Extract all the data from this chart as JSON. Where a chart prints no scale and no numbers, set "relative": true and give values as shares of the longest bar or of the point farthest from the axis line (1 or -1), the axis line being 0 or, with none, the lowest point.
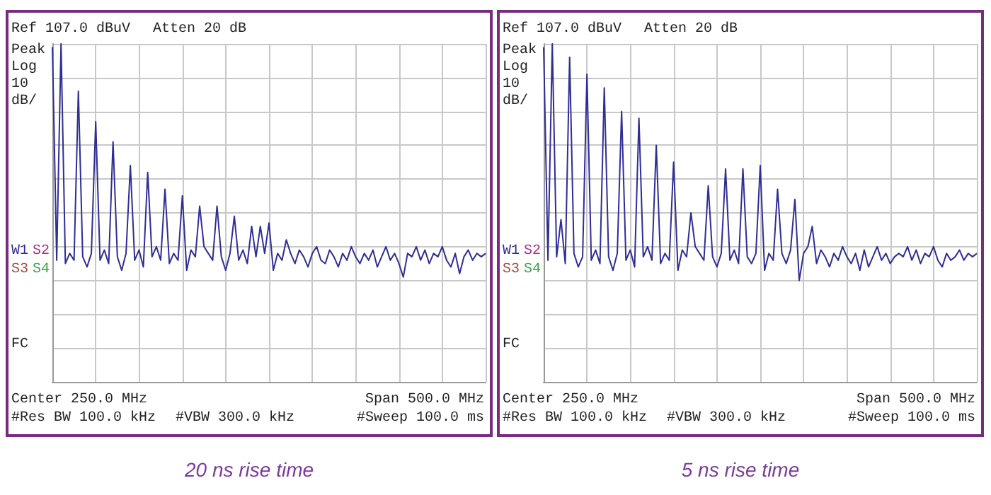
{
  "chart_data": [
    {
      "type": "line",
      "title": "20 ns rise time",
      "relative": true,
      "grid": true,
      "tick_labels": false,
      "line_style": "solid",
      "annotations": [
        "Ref 107.0 dBuV",
        "Atten 20 dB",
        "Peak",
        "Log",
        "10",
        "dB/",
        "W1",
        "S2",
        "S3",
        "S4",
        "FC",
        "Center 250.0 MHz",
        "Span 500.0 MHz",
        "#Res BW 100.0 kHz",
        "#VBW 300.0 kHz",
        "#Sweep 100.0 ms"
      ],
      "categories": [
        null,
        null,
        null,
        null,
        null,
        null,
        null,
        null,
        null,
        null,
        null,
        null,
        null,
        null,
        null,
        null,
        null,
        null,
        null,
        null,
        null,
        null,
        null,
        null,
        null,
        null,
        null,
        null,
        null,
        null,
        null,
        null,
        null,
        null,
        null,
        null,
        null,
        null,
        null,
        null,
        null,
        null,
        null,
        null,
        null,
        null,
        null,
        null,
        null,
        null,
        null,
        null,
        null,
        null,
        null,
        null,
        null,
        null,
        null,
        null,
        null,
        null,
        null,
        null,
        null,
        null,
        null,
        null,
        null,
        null,
        null,
        null,
        null,
        null,
        null,
        null,
        null,
        null,
        null,
        null,
        null,
        null,
        null,
        null,
        null,
        null,
        null,
        null,
        null,
        null,
        null,
        null,
        null,
        null,
        null,
        null,
        null,
        null,
        null,
        null,
        null
      ],
      "series": [
        {
          "color": "#2e2e96",
          "values": [
            0.99,
            0.36,
            1.0,
            0.35,
            0.38,
            0.36,
            0.86,
            0.37,
            0.34,
            0.38,
            0.77,
            0.36,
            0.39,
            0.35,
            0.71,
            0.37,
            0.33,
            0.38,
            0.64,
            0.36,
            0.39,
            0.34,
            0.62,
            0.37,
            0.4,
            0.36,
            0.57,
            0.35,
            0.38,
            0.36,
            0.55,
            0.33,
            0.39,
            0.37,
            0.52,
            0.4,
            0.38,
            0.36,
            0.52,
            0.37,
            0.33,
            0.38,
            0.49,
            0.36,
            0.39,
            0.35,
            0.46,
            0.37,
            0.46,
            0.38,
            0.47,
            0.33,
            0.38,
            0.36,
            0.42,
            0.38,
            0.35,
            0.39,
            0.37,
            0.34,
            0.38,
            0.4,
            0.36,
            0.35,
            0.39,
            0.37,
            0.34,
            0.38,
            0.36,
            0.4,
            0.37,
            0.35,
            0.38,
            0.36,
            0.39,
            0.34,
            0.37,
            0.4,
            0.36,
            0.38,
            0.35,
            0.31,
            0.38,
            0.37,
            0.4,
            0.36,
            0.39,
            0.35,
            0.38,
            0.37,
            0.4,
            0.36,
            0.34,
            0.38,
            0.32,
            0.37,
            0.39,
            0.36,
            0.38,
            0.37,
            0.38
          ]
        }
      ]
    },
    {
      "type": "line",
      "title": "5 ns rise time",
      "relative": true,
      "grid": true,
      "tick_labels": false,
      "line_style": "solid",
      "annotations": [
        "Ref 107.0 dBuV",
        "Atten 20 dB",
        "Peak",
        "Log",
        "10",
        "dB/",
        "W1",
        "S2",
        "S3",
        "S4",
        "FC",
        "Center 250.0 MHz",
        "Span 500.0 MHz",
        "#Res BW 100.0 kHz",
        "#VBW 300.0 kHz",
        "#Sweep 100.0 ms"
      ],
      "categories": [
        null,
        null,
        null,
        null,
        null,
        null,
        null,
        null,
        null,
        null,
        null,
        null,
        null,
        null,
        null,
        null,
        null,
        null,
        null,
        null,
        null,
        null,
        null,
        null,
        null,
        null,
        null,
        null,
        null,
        null,
        null,
        null,
        null,
        null,
        null,
        null,
        null,
        null,
        null,
        null,
        null,
        null,
        null,
        null,
        null,
        null,
        null,
        null,
        null,
        null,
        null,
        null,
        null,
        null,
        null,
        null,
        null,
        null,
        null,
        null,
        null,
        null,
        null,
        null,
        null,
        null,
        null,
        null,
        null,
        null,
        null,
        null,
        null,
        null,
        null,
        null,
        null,
        null,
        null,
        null,
        null,
        null,
        null,
        null,
        null,
        null,
        null,
        null,
        null,
        null,
        null,
        null,
        null,
        null,
        null,
        null,
        null,
        null,
        null,
        null,
        null
      ],
      "series": [
        {
          "color": "#2e2e96",
          "values": [
            0.99,
            0.36,
            1.0,
            0.37,
            0.48,
            0.35,
            0.96,
            0.38,
            0.34,
            0.37,
            0.91,
            0.36,
            0.39,
            0.35,
            0.87,
            0.37,
            0.33,
            0.38,
            0.8,
            0.36,
            0.39,
            0.34,
            0.78,
            0.37,
            0.4,
            0.36,
            0.7,
            0.35,
            0.38,
            0.36,
            0.65,
            0.33,
            0.39,
            0.37,
            0.5,
            0.4,
            0.38,
            0.36,
            0.58,
            0.37,
            0.34,
            0.38,
            0.63,
            0.36,
            0.39,
            0.35,
            0.63,
            0.37,
            0.35,
            0.38,
            0.64,
            0.33,
            0.38,
            0.36,
            0.57,
            0.38,
            0.35,
            0.39,
            0.54,
            0.3,
            0.38,
            0.4,
            0.46,
            0.35,
            0.39,
            0.37,
            0.34,
            0.38,
            0.36,
            0.4,
            0.37,
            0.35,
            0.38,
            0.33,
            0.39,
            0.34,
            0.37,
            0.4,
            0.36,
            0.38,
            0.35,
            0.37,
            0.38,
            0.37,
            0.4,
            0.36,
            0.39,
            0.35,
            0.38,
            0.37,
            0.4,
            0.36,
            0.34,
            0.38,
            0.36,
            0.37,
            0.39,
            0.36,
            0.38,
            0.37,
            0.38
          ]
        }
      ]
    }
  ]
}
